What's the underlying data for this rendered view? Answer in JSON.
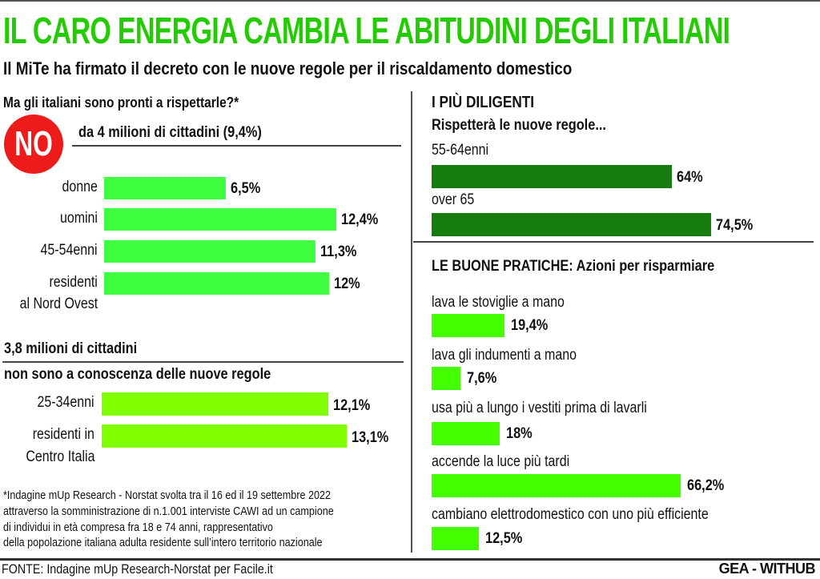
{
  "header": {
    "title": "IL CARO ENERGIA CAMBIA LE ABITUDINI DEGLI ITALIANI",
    "subtitle": "Il MiTe ha firmato il decreto con le nuove regole per il riscaldamento domestico"
  },
  "colors": {
    "title_green": "#22cc00",
    "bar_bright_green": "#40ff40",
    "bar_lime": "#80ff00",
    "bar_dark_green": "#167c10",
    "bar_practice_green": "#44ff00",
    "no_red": "#ee1b1b"
  },
  "left": {
    "question": "Ma gli italiani sono pronti a rispettarle?*",
    "no_badge": "NO",
    "no_heading": "da 4 milioni di cittadini (9,4%)",
    "unaware_heading_1": "3,8 milioni di cittadini",
    "unaware_heading_2": "non sono a conoscenza delle nuove regole",
    "footnote": [
      "*Indagine mUp Research - Norstat svolta tra il 16 ed il 19 settembre 2022",
      "attraverso la somministrazione di n.1.001 interviste CAWI ad un campione",
      "di individui in età compresa fra 18 e 74 anni, rappresentativo",
      "della popolazione italiana adulta residente sull’intero territorio nazionale"
    ]
  },
  "right": {
    "diligent_title": "I PIÙ DILIGENTI",
    "diligent_subtitle": "Rispetterà le nuove regole...",
    "practices_title": "LE BUONE PRATICHE:",
    "practices_subtitle": "Azioni per risparmiare"
  },
  "footer": {
    "source": "FONTE: Indagine mUp Research-Norstat per Facile.it",
    "brand": "GEA - WITHUB"
  },
  "chart_data": [
    {
      "type": "bar",
      "title": "da 4 milioni di cittadini (9,4%)",
      "orientation": "horizontal",
      "categories": [
        "donne",
        "uomini",
        "45-54enni",
        "residenti al Nord Ovest"
      ],
      "category_lines": [
        [
          "donne"
        ],
        [
          "uomini"
        ],
        [
          "45-54enni"
        ],
        [
          "residenti",
          "al Nord Ovest"
        ]
      ],
      "values": [
        6.5,
        12.4,
        11.3,
        12
      ],
      "labels": [
        "6,5%",
        "12,4%",
        "11,3%",
        "12%"
      ],
      "unit": "%"
    },
    {
      "type": "bar",
      "title": "3,8 milioni di cittadini non sono a conoscenza delle nuove regole",
      "orientation": "horizontal",
      "categories": [
        "25-34enni",
        "residenti in Centro Italia"
      ],
      "category_lines": [
        [
          "25-34enni"
        ],
        [
          "residenti in",
          "Centro Italia"
        ]
      ],
      "values": [
        12.1,
        13.1
      ],
      "labels": [
        "12,1%",
        "13,1%"
      ],
      "unit": "%"
    },
    {
      "type": "bar",
      "title": "I PIÙ DILIGENTI - Rispetterà le nuove regole...",
      "orientation": "horizontal",
      "categories": [
        "55-64enni",
        "over 65"
      ],
      "values": [
        64,
        74.5
      ],
      "labels": [
        "64%",
        "74,5%"
      ],
      "unit": "%"
    },
    {
      "type": "bar",
      "title": "LE BUONE PRATICHE: Azioni per risparmiare",
      "orientation": "horizontal",
      "categories": [
        "lava le stoviglie a mano",
        "lava gli indumenti a mano",
        "usa più a lungo i vestiti prima di lavarli",
        "accende la luce più tardi",
        "cambiano elettrodomestico con uno più efficiente"
      ],
      "values": [
        19.4,
        7.6,
        18,
        66.2,
        12.5
      ],
      "labels": [
        "19,4%",
        "7,6%",
        "18%",
        "66,2%",
        "12,5%"
      ],
      "unit": "%"
    }
  ]
}
